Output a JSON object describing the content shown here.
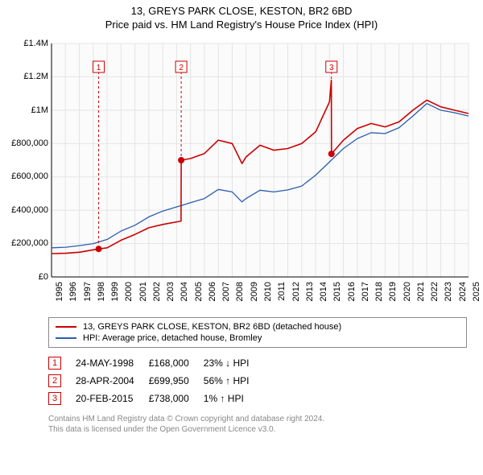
{
  "title_line1": "13, GREYS PARK CLOSE, KESTON, BR2 6BD",
  "title_line2": "Price paid vs. HM Land Registry's House Price Index (HPI)",
  "chart": {
    "type": "line",
    "plot_bg": "#fbfbfb",
    "grid_color": "#e4e4e4",
    "axis_color": "#000000",
    "y": {
      "min": 0,
      "max": 1400000,
      "step": 200000,
      "labels": [
        "£0",
        "£200,000",
        "£400,000",
        "£600,000",
        "£800,000",
        "£1M",
        "£1.2M",
        "£1.4M"
      ]
    },
    "x": {
      "min": 1995,
      "max": 2025,
      "step": 1,
      "labels": [
        "1995",
        "1996",
        "1997",
        "1998",
        "1999",
        "2000",
        "2001",
        "2002",
        "2003",
        "2004",
        "2005",
        "2006",
        "2007",
        "2008",
        "2009",
        "2010",
        "2011",
        "2012",
        "2013",
        "2014",
        "2015",
        "2016",
        "2017",
        "2018",
        "2019",
        "2020",
        "2021",
        "2022",
        "2023",
        "2024",
        "2025"
      ]
    },
    "series": [
      {
        "name": "13, GREYS PARK CLOSE, KESTON, BR2 6BD (detached house)",
        "color": "#cc0000",
        "width": 1.6,
        "points": [
          [
            1995,
            140000
          ],
          [
            1996,
            142000
          ],
          [
            1997,
            148000
          ],
          [
            1998.39,
            168000
          ],
          [
            1998.4,
            168000
          ],
          [
            1999,
            175000
          ],
          [
            2000,
            220000
          ],
          [
            2001,
            255000
          ],
          [
            2002,
            295000
          ],
          [
            2003,
            315000
          ],
          [
            2004.32,
            335000
          ],
          [
            2004.33,
            699950
          ],
          [
            2005,
            710000
          ],
          [
            2006,
            740000
          ],
          [
            2007,
            820000
          ],
          [
            2008,
            800000
          ],
          [
            2008.7,
            680000
          ],
          [
            2009,
            720000
          ],
          [
            2010,
            790000
          ],
          [
            2011,
            760000
          ],
          [
            2012,
            770000
          ],
          [
            2013,
            800000
          ],
          [
            2014,
            870000
          ],
          [
            2015,
            1050000
          ],
          [
            2015.13,
            1180000
          ],
          [
            2015.14,
            738000
          ],
          [
            2016,
            820000
          ],
          [
            2017,
            890000
          ],
          [
            2018,
            920000
          ],
          [
            2019,
            900000
          ],
          [
            2020,
            930000
          ],
          [
            2021,
            1000000
          ],
          [
            2022,
            1060000
          ],
          [
            2023,
            1020000
          ],
          [
            2024,
            1000000
          ],
          [
            2025,
            980000
          ]
        ]
      },
      {
        "name": "HPI: Average price, detached house, Bromley",
        "color": "#2a5db0",
        "width": 1.3,
        "points": [
          [
            1995,
            175000
          ],
          [
            1996,
            178000
          ],
          [
            1997,
            188000
          ],
          [
            1998,
            200000
          ],
          [
            1999,
            225000
          ],
          [
            2000,
            275000
          ],
          [
            2001,
            310000
          ],
          [
            2002,
            360000
          ],
          [
            2003,
            395000
          ],
          [
            2004,
            420000
          ],
          [
            2005,
            445000
          ],
          [
            2006,
            470000
          ],
          [
            2007,
            525000
          ],
          [
            2008,
            510000
          ],
          [
            2008.7,
            450000
          ],
          [
            2009,
            470000
          ],
          [
            2010,
            520000
          ],
          [
            2011,
            510000
          ],
          [
            2012,
            522000
          ],
          [
            2013,
            545000
          ],
          [
            2014,
            610000
          ],
          [
            2015,
            690000
          ],
          [
            2016,
            770000
          ],
          [
            2017,
            830000
          ],
          [
            2018,
            865000
          ],
          [
            2019,
            860000
          ],
          [
            2020,
            895000
          ],
          [
            2021,
            965000
          ],
          [
            2022,
            1040000
          ],
          [
            2023,
            1000000
          ],
          [
            2024,
            985000
          ],
          [
            2025,
            965000
          ]
        ]
      }
    ],
    "markers": [
      {
        "n": 1,
        "year": 1998.39,
        "price": 168000,
        "box_y": 1260000,
        "date": "24-MAY-1998",
        "price_label": "£168,000",
        "delta": "23% ↓ HPI"
      },
      {
        "n": 2,
        "year": 2004.33,
        "price": 699950,
        "box_y": 1260000,
        "date": "28-APR-2004",
        "price_label": "£699,950",
        "delta": "56% ↑ HPI"
      },
      {
        "n": 3,
        "year": 2015.14,
        "price": 738000,
        "box_y": 1260000,
        "date": "20-FEB-2015",
        "price_label": "£738,000",
        "delta": "1% ↑ HPI"
      }
    ],
    "marker_dot_color": "#cc0000",
    "marker_dot_radius": 4,
    "marker_line_color": "#cc0000",
    "marker_box_border": "#cc0000",
    "marker_box_text": "#cc0000",
    "callout_box_w": 14,
    "callout_box_h": 14
  },
  "legend": {
    "items": [
      {
        "color": "#cc0000",
        "label": "13, GREYS PARK CLOSE, KESTON, BR2 6BD (detached house)"
      },
      {
        "color": "#2a5db0",
        "label": "HPI: Average price, detached house, Bromley"
      }
    ]
  },
  "footer_line1": "Contains HM Land Registry data © Crown copyright and database right 2024.",
  "footer_line2": "This data is licensed under the Open Government Licence v3.0."
}
